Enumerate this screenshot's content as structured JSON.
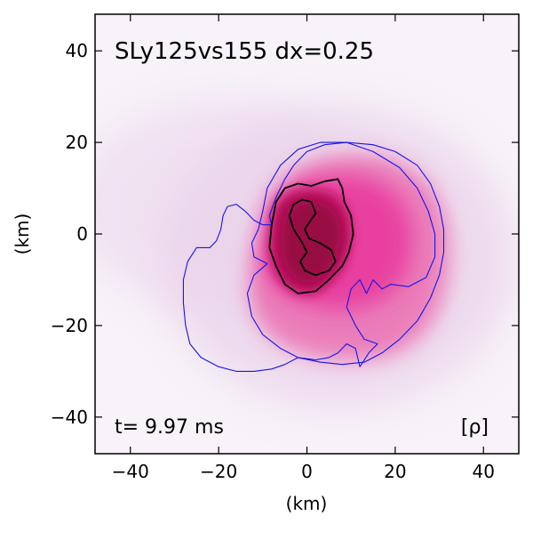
{
  "chart_data": {
    "type": "heatmap",
    "title": "SLy125vs155 dx=0.25",
    "xlabel": "(km)",
    "ylabel": "(km)",
    "xlim": [
      -48,
      48
    ],
    "ylim": [
      -48,
      48
    ],
    "xticks": [
      -40,
      -20,
      0,
      20,
      40
    ],
    "yticks": [
      -40,
      -20,
      0,
      20,
      40
    ],
    "xtick_labels": [
      "−40",
      "−20",
      "0",
      "20",
      "40"
    ],
    "ytick_labels": [
      "−40",
      "−20",
      "0",
      "20",
      "40"
    ],
    "time_label": "t= 9.97 ms",
    "field_label": "[ρ]",
    "colormap": [
      "#f7f3f9",
      "#d9b6dc",
      "#e8559b",
      "#e6207c",
      "#9e0b4a"
    ],
    "contours": [
      {
        "name": "outer-density-contour",
        "color": "#1515e8",
        "points": [
          [
            -8,
            2
          ],
          [
            -8.5,
            4
          ],
          [
            -7,
            8
          ],
          [
            -5,
            12
          ],
          [
            -3,
            15
          ],
          [
            0,
            18
          ],
          [
            4,
            19.5
          ],
          [
            9,
            20
          ],
          [
            15,
            19.5
          ],
          [
            20,
            18
          ],
          [
            25,
            15
          ],
          [
            28,
            11
          ],
          [
            30,
            6
          ],
          [
            31,
            1
          ],
          [
            31,
            -4
          ],
          [
            30,
            -9
          ],
          [
            28,
            -14
          ],
          [
            25,
            -19
          ],
          [
            21,
            -23
          ],
          [
            17,
            -26
          ],
          [
            13,
            -28
          ],
          [
            8,
            -28.5
          ],
          [
            3,
            -28
          ],
          [
            -2,
            -27
          ],
          [
            -5,
            -28.5
          ],
          [
            -8,
            -29.5
          ],
          [
            -12,
            -30
          ],
          [
            -16,
            -30
          ],
          [
            -20,
            -29
          ],
          [
            -24,
            -27
          ],
          [
            -26.5,
            -24
          ],
          [
            -27.5,
            -20
          ],
          [
            -28,
            -15
          ],
          [
            -28,
            -10
          ],
          [
            -27,
            -6
          ],
          [
            -25,
            -3
          ],
          [
            -22,
            -3
          ],
          [
            -20.5,
            -1.5
          ],
          [
            -19.5,
            1
          ],
          [
            -19,
            4
          ],
          [
            -18,
            6
          ],
          [
            -16,
            6.5
          ],
          [
            -14,
            5
          ],
          [
            -12,
            3
          ],
          [
            -10,
            2
          ],
          [
            -8,
            2
          ]
        ]
      },
      {
        "name": "inner-density-contour",
        "color": "#1515e8",
        "points": [
          [
            -10,
            5
          ],
          [
            -9,
            10
          ],
          [
            -6,
            15
          ],
          [
            -2,
            18.5
          ],
          [
            3,
            20
          ],
          [
            9,
            20
          ],
          [
            15,
            18
          ],
          [
            21,
            14.5
          ],
          [
            25,
            10
          ],
          [
            27.5,
            5
          ],
          [
            29,
            0
          ],
          [
            29,
            -5
          ],
          [
            27,
            -9.5
          ],
          [
            23,
            -11.5
          ],
          [
            19,
            -11
          ],
          [
            17,
            -12
          ],
          [
            15,
            -10
          ],
          [
            13.5,
            -13
          ],
          [
            12,
            -10
          ],
          [
            10,
            -12
          ],
          [
            9,
            -16
          ],
          [
            11,
            -20
          ],
          [
            13,
            -23
          ],
          [
            16,
            -24
          ],
          [
            14,
            -26
          ],
          [
            12,
            -29
          ],
          [
            11,
            -25
          ],
          [
            9,
            -24
          ],
          [
            7,
            -26
          ],
          [
            5,
            -27
          ],
          [
            2,
            -27.5
          ],
          [
            -2,
            -27
          ],
          [
            -6,
            -25
          ],
          [
            -10,
            -22
          ],
          [
            -12.5,
            -18
          ],
          [
            -13.5,
            -13
          ],
          [
            -12,
            -9
          ],
          [
            -9,
            -6.5
          ],
          [
            -12,
            -5
          ],
          [
            -12.5,
            -2
          ],
          [
            -11,
            1
          ],
          [
            -10,
            5
          ]
        ]
      },
      {
        "name": "core-contour-outer",
        "color": "#000000",
        "points": [
          [
            -8,
            2
          ],
          [
            -7,
            7
          ],
          [
            -5,
            10
          ],
          [
            -2,
            11
          ],
          [
            1,
            10.5
          ],
          [
            4,
            11.5
          ],
          [
            7,
            12
          ],
          [
            8,
            10
          ],
          [
            8.5,
            7
          ],
          [
            10,
            4
          ],
          [
            10.5,
            0
          ],
          [
            9.5,
            -4
          ],
          [
            8,
            -7
          ],
          [
            5,
            -10
          ],
          [
            2,
            -12.5
          ],
          [
            -2,
            -13
          ],
          [
            -5,
            -11
          ],
          [
            -7,
            -7
          ],
          [
            -8.5,
            -3
          ],
          [
            -8,
            2
          ]
        ]
      },
      {
        "name": "core-contour-inner",
        "color": "#000000",
        "points": [
          [
            -3,
            1
          ],
          [
            -4,
            4
          ],
          [
            -3,
            6.5
          ],
          [
            -1,
            7.5
          ],
          [
            1,
            7
          ],
          [
            2,
            4.5
          ],
          [
            0.5,
            2.5
          ],
          [
            -0.5,
            1
          ],
          [
            0.5,
            -1
          ],
          [
            3,
            -2
          ],
          [
            5.5,
            -3.5
          ],
          [
            6.5,
            -6
          ],
          [
            5,
            -8
          ],
          [
            2,
            -9
          ],
          [
            -0.5,
            -8
          ],
          [
            -1.5,
            -6
          ],
          [
            0,
            -4
          ],
          [
            -1,
            -2
          ],
          [
            -3,
            1
          ]
        ]
      }
    ]
  }
}
